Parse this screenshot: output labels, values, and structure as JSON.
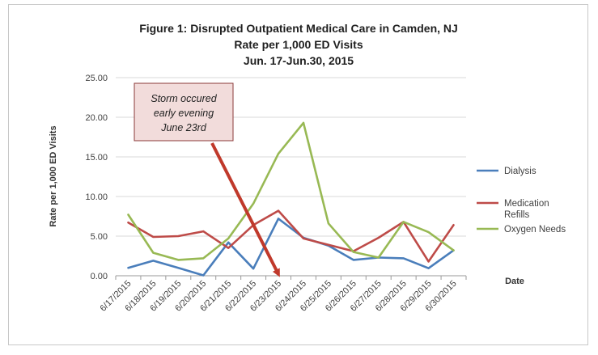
{
  "chart_data": {
    "type": "line",
    "title": "Figure 1:  Disrupted Outpatient Medical Care in Camden, NJ",
    "subtitle": "Rate per 1,000 ED Visits",
    "subtitle2": "Jun. 17-Jun.30, 2015",
    "xlabel": "Date",
    "ylabel": "Rate per 1,000 ED Visits",
    "ylim": [
      0,
      25
    ],
    "yticks": [
      "0.00",
      "5.00",
      "10.00",
      "15.00",
      "20.00",
      "25.00"
    ],
    "categories": [
      "6/17/2015",
      "6/18/2015",
      "6/19/2015",
      "6/20/2015",
      "6/21/2015",
      "6/22/2015",
      "6/23/2015",
      "6/24/2015",
      "6/25/2015",
      "6/26/2015",
      "6/27/2015",
      "6/28/2015",
      "6/29/2015",
      "6/30/2015"
    ],
    "series": [
      {
        "name": "Dialysis",
        "color": "#4a7ebb",
        "values": [
          1.0,
          1.9,
          1.0,
          0.05,
          4.2,
          0.9,
          7.2,
          4.8,
          3.8,
          2.0,
          2.3,
          2.2,
          0.95,
          3.2
        ]
      },
      {
        "name": "Medication Refills",
        "color": "#be4b48",
        "values": [
          6.7,
          4.9,
          5.0,
          5.6,
          3.5,
          6.4,
          8.2,
          4.7,
          3.9,
          3.1,
          4.8,
          6.8,
          1.8,
          6.4
        ]
      },
      {
        "name": "Oxygen Needs",
        "color": "#98b954",
        "values": [
          7.7,
          2.9,
          2.0,
          2.2,
          4.7,
          9.1,
          15.4,
          19.3,
          6.6,
          3.0,
          2.3,
          6.8,
          5.5,
          3.2
        ]
      }
    ],
    "legend_position": "right",
    "grid": true,
    "annotation": {
      "lines": [
        "Storm occured",
        "early evening",
        "June 23rd"
      ],
      "arrow_target": "6/23/2015",
      "arrow_color": "#c0392b"
    }
  }
}
